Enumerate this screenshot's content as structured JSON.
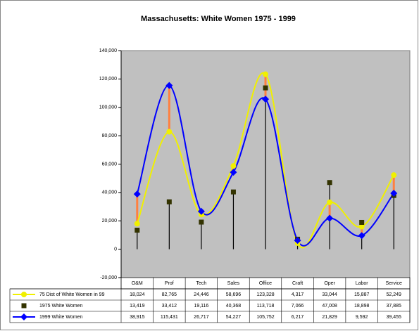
{
  "chart_data": {
    "type": "line",
    "title": "Massachusetts: White Women 1975 - 1999",
    "categories": [
      "O&M",
      "Prof",
      "Tech",
      "Sales",
      "Office",
      "Craft",
      "Oper",
      "Labor",
      "Service"
    ],
    "ylim": [
      -20000,
      140000
    ],
    "yticks": [
      {
        "value": -20000,
        "label": "-20,000"
      },
      0,
      {
        "value": 20000,
        "label": "20,000"
      },
      {
        "value": 40000,
        "label": "40,000"
      },
      {
        "value": 60000,
        "label": "60,000"
      },
      {
        "value": 80000,
        "label": "80,000"
      },
      {
        "value": 100000,
        "label": "100,000"
      },
      {
        "value": 120000,
        "label": "120,000"
      },
      {
        "value": 140000,
        "label": "140,000"
      }
    ],
    "series": [
      {
        "name": "75 Dist of White Women in 99",
        "color": "#f0f000",
        "marker": "circle",
        "line": true,
        "values": [
          18024,
          82765,
          24446,
          58696,
          123328,
          4317,
          33044,
          15887,
          52249
        ],
        "value_labels": [
          "18,024",
          "82,765",
          "24,446",
          "58,696",
          "123,328",
          "4,317",
          "33,044",
          "15,887",
          "52,249"
        ]
      },
      {
        "name": "1975 White Women",
        "color": "#333300",
        "marker": "square",
        "line": false,
        "values": [
          13419,
          33412,
          19116,
          40368,
          113718,
          7066,
          47008,
          18898,
          37885
        ],
        "value_labels": [
          "13,419",
          "33,412",
          "19,116",
          "40,368",
          "113,718",
          "7,066",
          "47,008",
          "18,898",
          "37,885"
        ]
      },
      {
        "name": "1999 White Women",
        "color": "#0000ff",
        "marker": "diamond",
        "line": true,
        "values": [
          38915,
          115431,
          26717,
          54227,
          105752,
          6217,
          21829,
          9592,
          39455
        ],
        "value_labels": [
          "38,915",
          "115,431",
          "26,717",
          "54,227",
          "105,752",
          "6,217",
          "21,829",
          "9,592",
          "39,455"
        ]
      }
    ]
  }
}
